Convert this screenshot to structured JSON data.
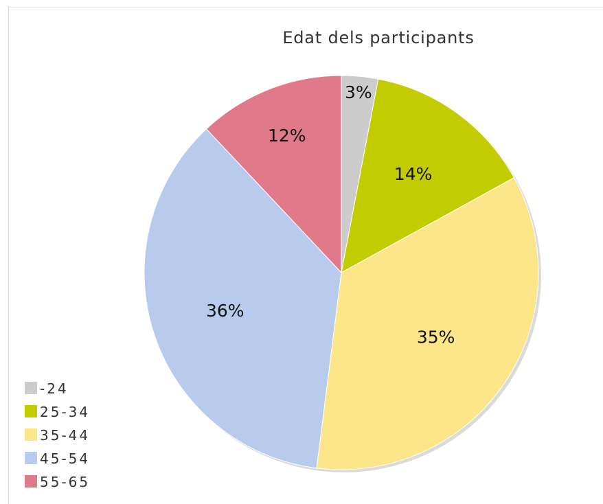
{
  "chart_data": {
    "type": "pie",
    "title": "Edat dels participants",
    "categories": [
      "-24",
      "25-34",
      "35-44",
      "45-54",
      "55-65"
    ],
    "values": [
      3,
      14,
      35,
      36,
      12
    ],
    "labels": [
      "3%",
      "14%",
      "35%",
      "36%",
      "12%"
    ],
    "colors": [
      "#cccccc",
      "#c3cc00",
      "#fde68a",
      "#b8cbed",
      "#e07a8b"
    ],
    "legend_position": "bottom-left",
    "start_angle": "12 o'clock",
    "direction": "clockwise"
  }
}
